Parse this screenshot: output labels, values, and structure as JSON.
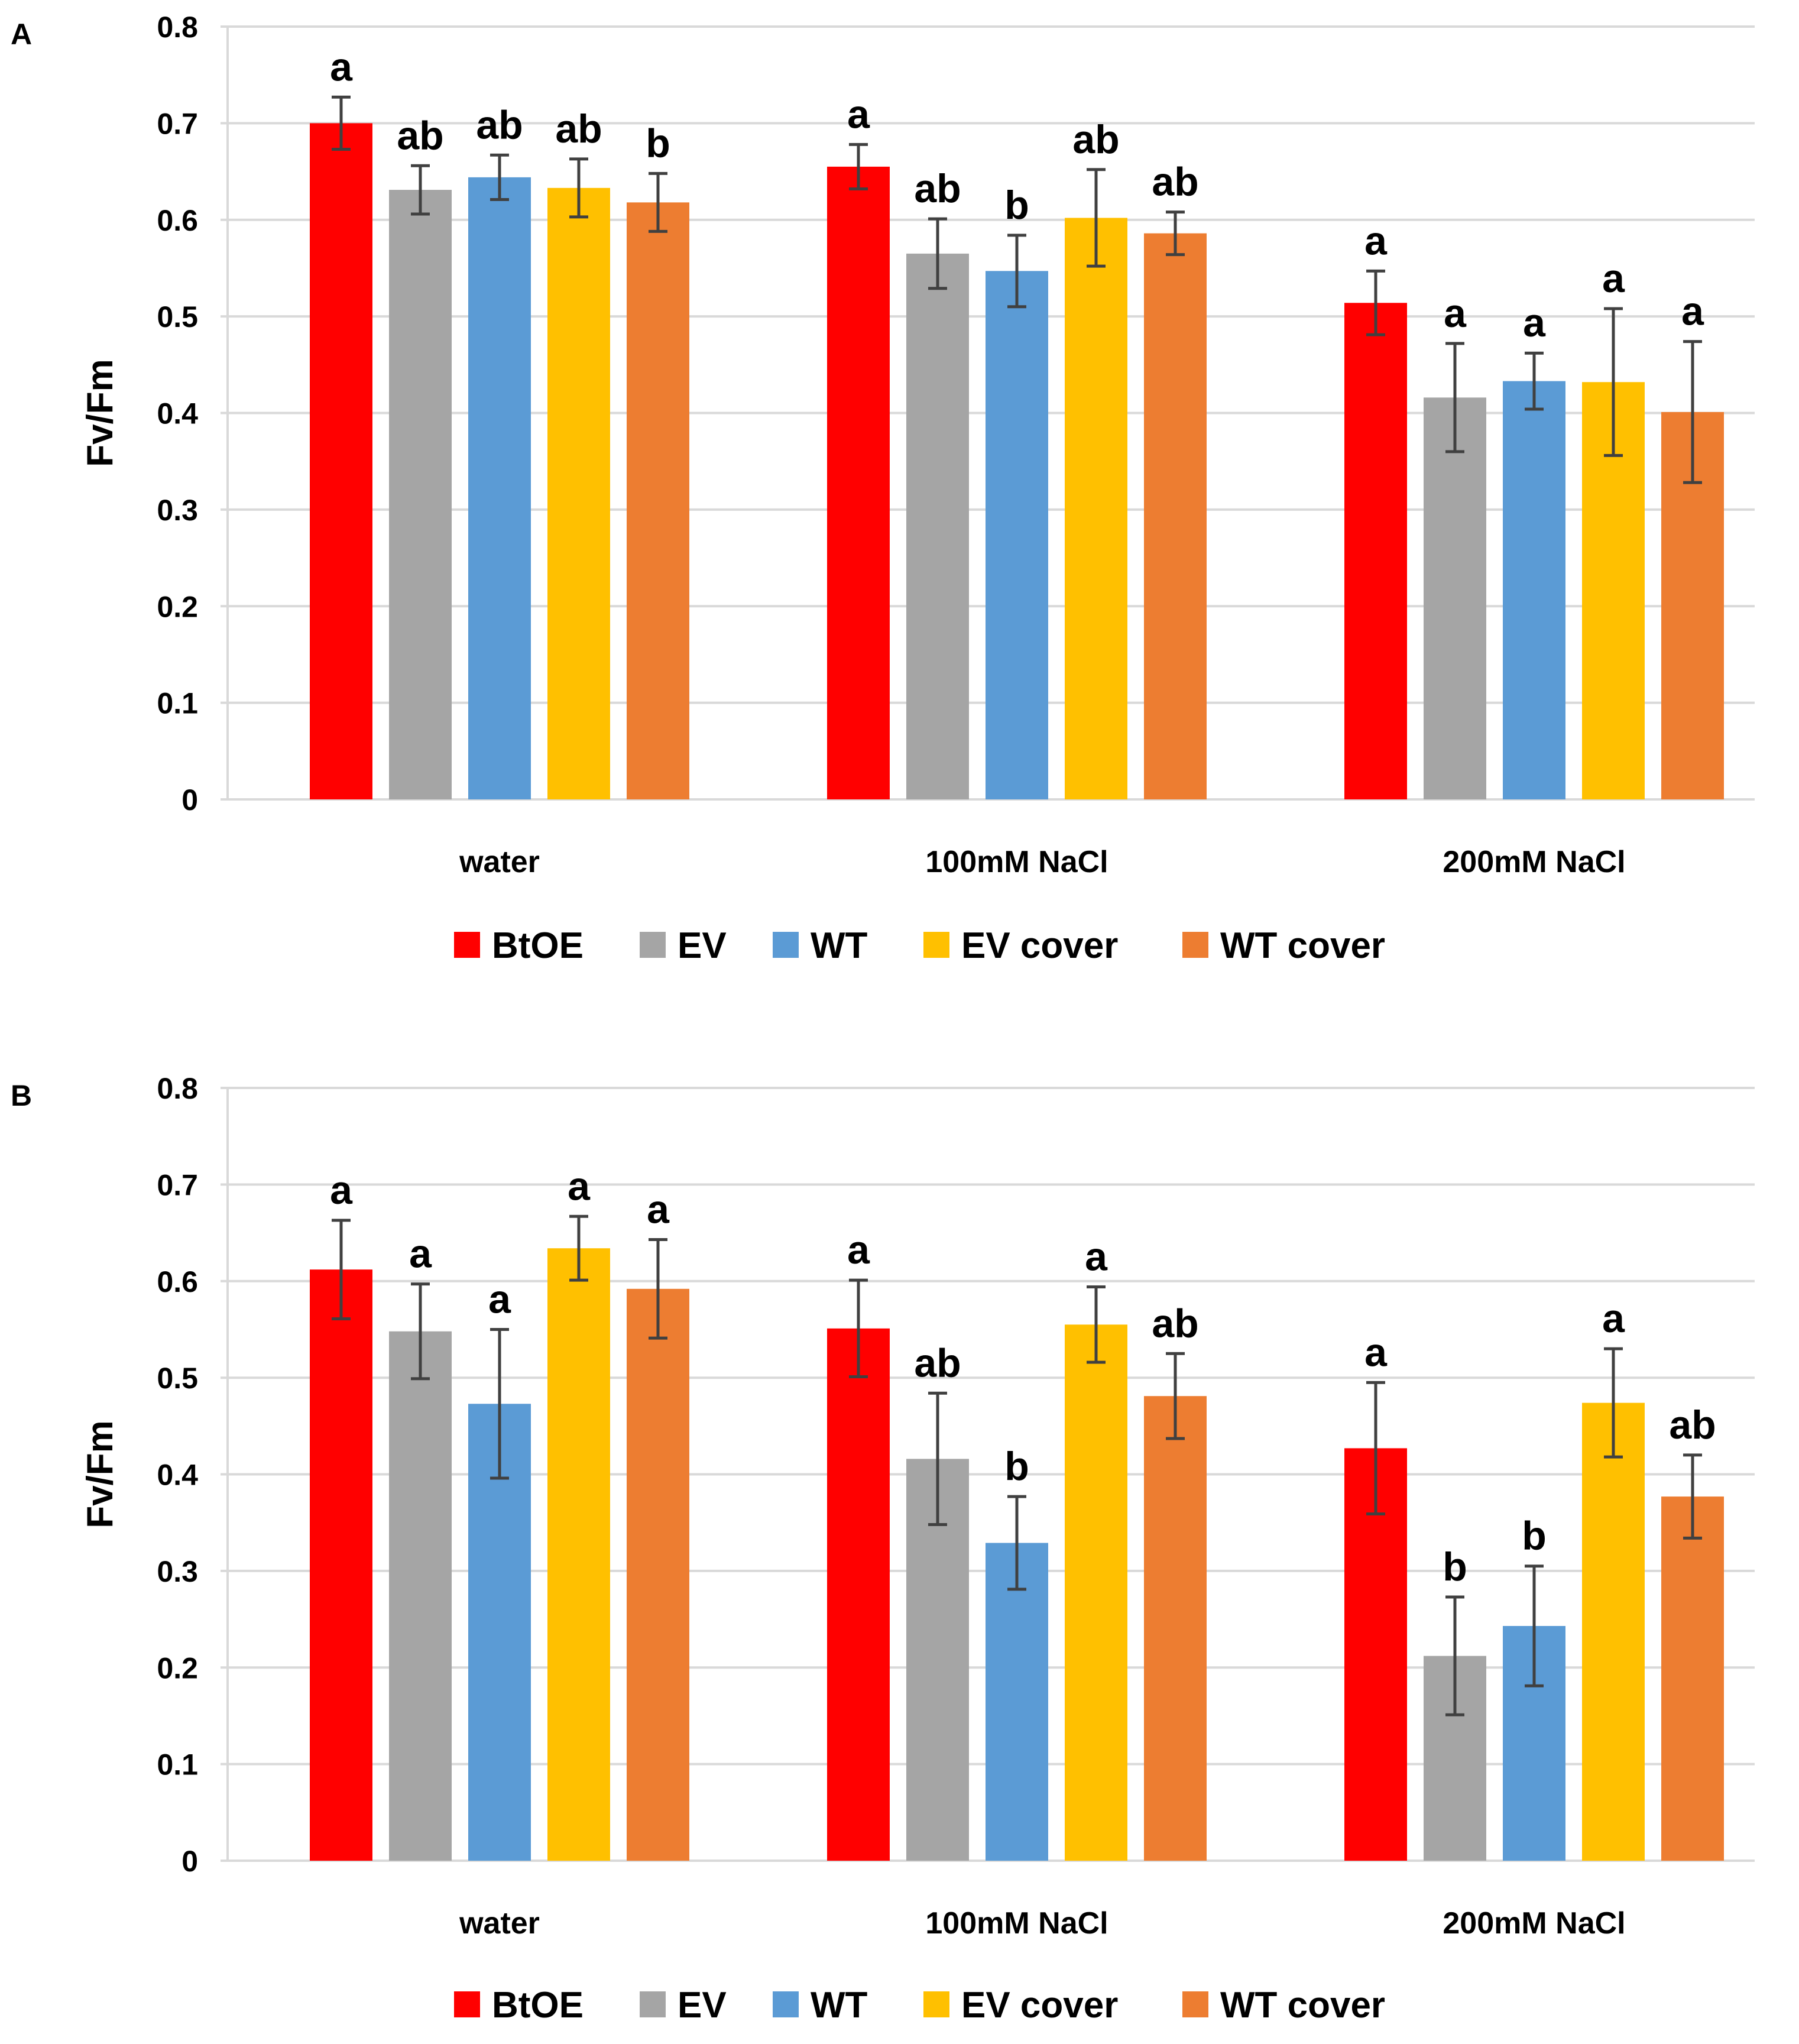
{
  "chart_data": [
    {
      "panel_label": "A",
      "type": "bar",
      "title": "",
      "xlabel": "",
      "ylabel": "Fv/Fm",
      "ylim": [
        0,
        0.8
      ],
      "yticks": [
        "0",
        "0.1",
        "0.2",
        "0.3",
        "0.4",
        "0.5",
        "0.6",
        "0.7",
        "0.8"
      ],
      "grid": true,
      "legend_position": "bottom",
      "categories": [
        "water",
        "100mM NaCl",
        "200mM NaCl"
      ],
      "series": [
        {
          "name": "BtOE",
          "color": "#ff0000",
          "values": [
            0.7,
            0.655,
            0.514
          ],
          "errors": [
            0.027,
            0.023,
            0.033
          ],
          "letters": [
            "a",
            "a",
            "a"
          ]
        },
        {
          "name": "EV",
          "color": "#a5a5a5",
          "values": [
            0.631,
            0.565,
            0.416
          ],
          "errors": [
            0.025,
            0.036,
            0.056
          ],
          "letters": [
            "ab",
            "ab",
            "a"
          ]
        },
        {
          "name": "WT",
          "color": "#5b9bd5",
          "values": [
            0.644,
            0.547,
            0.433
          ],
          "errors": [
            0.023,
            0.037,
            0.029
          ],
          "letters": [
            "ab",
            "b",
            "a"
          ]
        },
        {
          "name": "EV cover",
          "color": "#ffc000",
          "values": [
            0.633,
            0.602,
            0.432
          ],
          "errors": [
            0.03,
            0.05,
            0.076
          ],
          "letters": [
            "ab",
            "ab",
            "a"
          ]
        },
        {
          "name": "WT cover",
          "color": "#ed7d31",
          "values": [
            0.618,
            0.586,
            0.401
          ],
          "errors": [
            0.03,
            0.022,
            0.073
          ],
          "letters": [
            "b",
            "ab",
            "a"
          ]
        }
      ]
    },
    {
      "panel_label": "B",
      "type": "bar",
      "title": "",
      "xlabel": "",
      "ylabel": "Fv/Fm",
      "ylim": [
        0,
        0.8
      ],
      "yticks": [
        "0",
        "0.1",
        "0.2",
        "0.3",
        "0.4",
        "0.5",
        "0.6",
        "0.7",
        "0.8"
      ],
      "grid": true,
      "legend_position": "bottom",
      "categories": [
        "water",
        "100mM NaCl",
        "200mM NaCl"
      ],
      "series": [
        {
          "name": "BtOE",
          "color": "#ff0000",
          "values": [
            0.612,
            0.551,
            0.427
          ],
          "errors": [
            0.051,
            0.05,
            0.068
          ],
          "letters": [
            "a",
            "a",
            "a"
          ]
        },
        {
          "name": "EV",
          "color": "#a5a5a5",
          "values": [
            0.548,
            0.416,
            0.212
          ],
          "errors": [
            0.049,
            0.068,
            0.061
          ],
          "letters": [
            "a",
            "ab",
            "b"
          ]
        },
        {
          "name": "WT",
          "color": "#5b9bd5",
          "values": [
            0.473,
            0.329,
            0.243
          ],
          "errors": [
            0.077,
            0.048,
            0.062
          ],
          "letters": [
            "a",
            "b",
            "b"
          ]
        },
        {
          "name": "EV cover",
          "color": "#ffc000",
          "values": [
            0.634,
            0.555,
            0.474
          ],
          "errors": [
            0.033,
            0.039,
            0.056
          ],
          "letters": [
            "a",
            "a",
            "a"
          ]
        },
        {
          "name": "WT cover",
          "color": "#ed7d31",
          "values": [
            0.592,
            0.481,
            0.377
          ],
          "errors": [
            0.051,
            0.044,
            0.043
          ],
          "letters": [
            "a",
            "ab",
            "ab"
          ]
        }
      ]
    }
  ]
}
